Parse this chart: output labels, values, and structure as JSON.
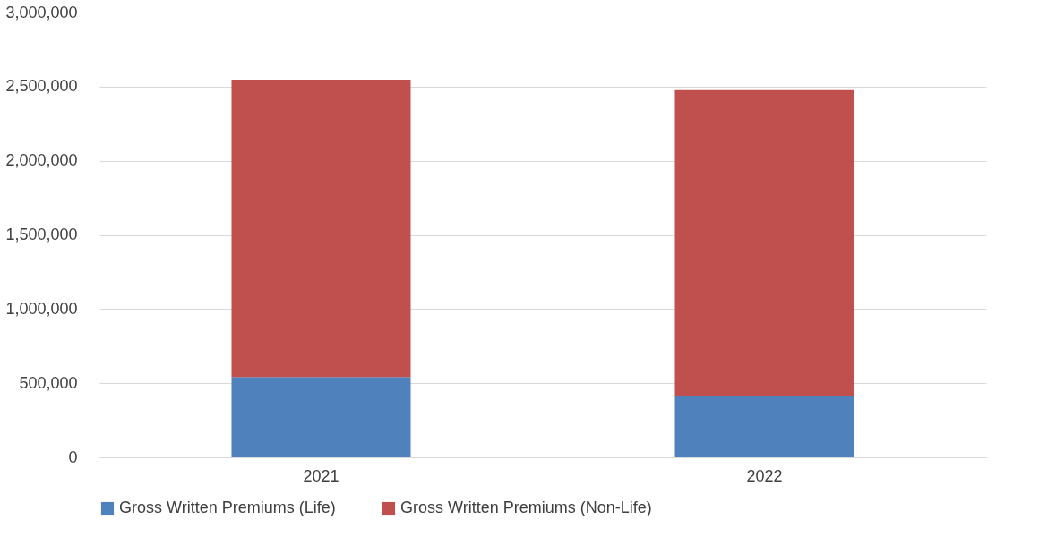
{
  "chart_data": {
    "type": "bar",
    "stacked": true,
    "categories": [
      "2021",
      "2022"
    ],
    "series": [
      {
        "name": "Gross Written Premiums (Life)",
        "color": "#4f81bd",
        "values": [
          542000,
          416000
        ]
      },
      {
        "name": "Gross Written Premiums (Non-Life)",
        "color": "#c0504d",
        "values": [
          2006000,
          2060000
        ]
      }
    ],
    "ylim": [
      0,
      3000000
    ],
    "yticks": [
      0,
      {
        "value": 500000,
        "label": "500,000"
      },
      {
        "value": 1000000,
        "label": "1,000,000"
      },
      {
        "value": 1500000,
        "label": "1,500,000"
      },
      {
        "value": 2000000,
        "label": "2,000,000"
      },
      {
        "value": 2500000,
        "label": "2,500,000"
      },
      {
        "value": 3000000,
        "label": "3,000,000"
      }
    ],
    "grid": "y",
    "legend": "bottom"
  }
}
